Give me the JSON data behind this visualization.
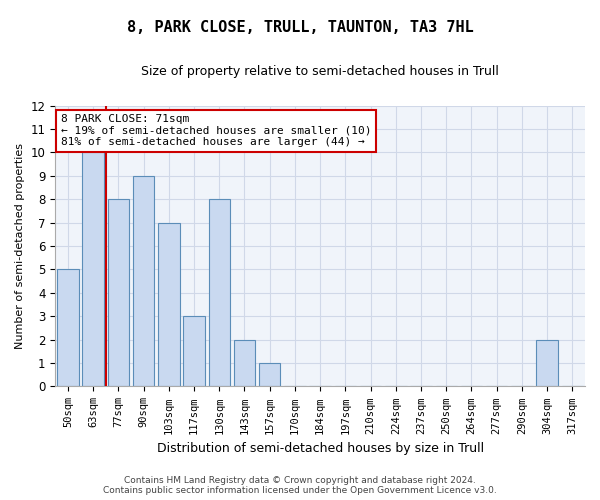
{
  "title1": "8, PARK CLOSE, TRULL, TAUNTON, TA3 7HL",
  "title2": "Size of property relative to semi-detached houses in Trull",
  "xlabel": "Distribution of semi-detached houses by size in Trull",
  "ylabel": "Number of semi-detached properties",
  "categories": [
    "50sqm",
    "63sqm",
    "77sqm",
    "90sqm",
    "103sqm",
    "117sqm",
    "130sqm",
    "143sqm",
    "157sqm",
    "170sqm",
    "184sqm",
    "197sqm",
    "210sqm",
    "224sqm",
    "237sqm",
    "250sqm",
    "264sqm",
    "277sqm",
    "290sqm",
    "304sqm",
    "317sqm"
  ],
  "values": [
    5,
    10,
    8,
    9,
    7,
    3,
    8,
    2,
    1,
    0,
    0,
    0,
    0,
    0,
    0,
    0,
    0,
    0,
    0,
    2,
    0
  ],
  "bar_color": "#c9d9f0",
  "bar_edge_color": "#5b8db8",
  "subject_line_color": "#cc0000",
  "annotation_text": "8 PARK CLOSE: 71sqm\n← 19% of semi-detached houses are smaller (10)\n81% of semi-detached houses are larger (44) →",
  "annotation_box_color": "#ffffff",
  "annotation_box_edge_color": "#cc0000",
  "ylim": [
    0,
    12
  ],
  "yticks": [
    0,
    1,
    2,
    3,
    4,
    5,
    6,
    7,
    8,
    9,
    10,
    11,
    12
  ],
  "footer_line1": "Contains HM Land Registry data © Crown copyright and database right 2024.",
  "footer_line2": "Contains public sector information licensed under the Open Government Licence v3.0.",
  "grid_color": "#d0d8e8",
  "background_color": "#f0f4fa"
}
